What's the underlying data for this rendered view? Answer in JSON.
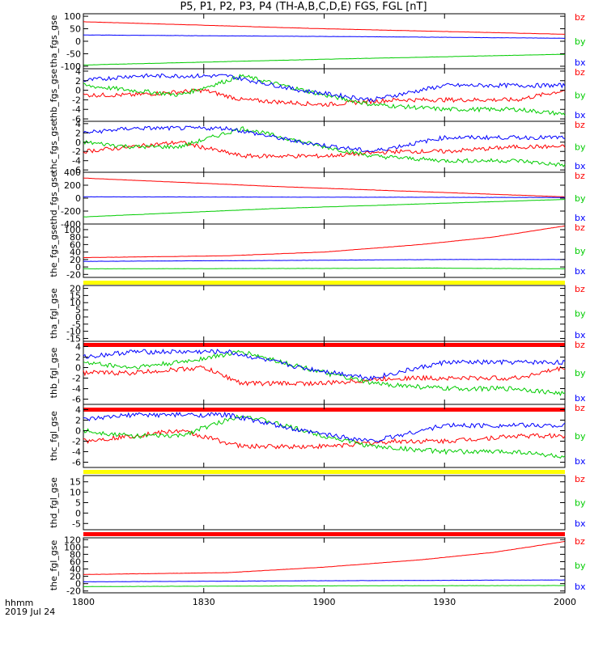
{
  "title": "P5, P1, P2, P3, P4 (TH-A,B,C,D,E) FGS, FGL [nT]",
  "footer": {
    "time_label": "hhmm",
    "date_label": "2019 Jul 24"
  },
  "x_axis": {
    "ticks": [
      1800,
      1830,
      1900,
      1930,
      2000
    ],
    "tick_labels": [
      "1800",
      "1830",
      "1900",
      "1930",
      "2000"
    ]
  },
  "colors": {
    "bx": "#0000ff",
    "by": "#00cc00",
    "bz": "#ff0000",
    "flag_yellow": "#ffff00",
    "flag_red": "#ff0000",
    "axis": "#000000"
  },
  "chart_data": [
    {
      "type": "line",
      "ylabel": "tha_fgs_gse",
      "ylim": [
        -110,
        110
      ],
      "yticks": [
        100,
        50,
        0,
        -50,
        -100
      ],
      "legend": [
        "bz",
        "by",
        "bx"
      ],
      "series": [
        {
          "name": "bz",
          "color": "#ff0000",
          "points": [
            [
              0,
              78
            ],
            [
              0.5,
              50
            ],
            [
              1,
              28
            ]
          ]
        },
        {
          "name": "by",
          "color": "#00cc00",
          "points": [
            [
              0,
              -95
            ],
            [
              0.5,
              -72
            ],
            [
              1,
              -52
            ]
          ]
        },
        {
          "name": "bx",
          "color": "#0000ff",
          "points": [
            [
              0,
              25
            ],
            [
              0.6,
              18
            ],
            [
              1,
              12
            ]
          ]
        }
      ]
    },
    {
      "type": "line",
      "ylabel": "thb_fgs_gse",
      "ylim": [
        -6.5,
        4.5
      ],
      "yticks": [
        4,
        2,
        0,
        -2,
        -4,
        -6
      ],
      "legend": [
        "bz",
        "by",
        "bx"
      ],
      "series": [
        {
          "name": "bz",
          "color": "#ff0000",
          "points": [
            [
              0,
              -1
            ],
            [
              0.1,
              -1
            ],
            [
              0.25,
              0
            ],
            [
              0.33,
              -2
            ],
            [
              0.5,
              -3
            ],
            [
              0.65,
              -2
            ],
            [
              0.75,
              -2
            ],
            [
              0.9,
              -2
            ],
            [
              1,
              0
            ]
          ]
        },
        {
          "name": "by",
          "color": "#00cc00",
          "points": [
            [
              0,
              1
            ],
            [
              0.1,
              0
            ],
            [
              0.2,
              -1
            ],
            [
              0.33,
              3
            ],
            [
              0.5,
              -1
            ],
            [
              0.6,
              -3
            ],
            [
              0.75,
              -4
            ],
            [
              0.9,
              -4
            ],
            [
              1,
              -5
            ]
          ]
        },
        {
          "name": "bx",
          "color": "#0000ff",
          "points": [
            [
              0,
              2
            ],
            [
              0.1,
              3
            ],
            [
              0.3,
              3
            ],
            [
              0.45,
              0
            ],
            [
              0.6,
              -2
            ],
            [
              0.75,
              1
            ],
            [
              0.9,
              1
            ],
            [
              1,
              1
            ]
          ]
        }
      ]
    },
    {
      "type": "line",
      "ylabel": "thc_fgs_gse",
      "ylim": [
        -6.5,
        4.5
      ],
      "yticks": [
        4,
        2,
        0,
        -2,
        -4,
        -6
      ],
      "legend": [
        "bz",
        "by",
        "bx"
      ],
      "series": [
        {
          "name": "bz",
          "color": "#ff0000",
          "points": [
            [
              0,
              -2
            ],
            [
              0.1,
              -1
            ],
            [
              0.2,
              0
            ],
            [
              0.33,
              -3
            ],
            [
              0.5,
              -3
            ],
            [
              0.65,
              -2
            ],
            [
              0.75,
              -2
            ],
            [
              0.9,
              -1
            ],
            [
              1,
              -1
            ]
          ]
        },
        {
          "name": "by",
          "color": "#00cc00",
          "points": [
            [
              0,
              0
            ],
            [
              0.1,
              -1
            ],
            [
              0.2,
              -1
            ],
            [
              0.33,
              3
            ],
            [
              0.5,
              -1
            ],
            [
              0.6,
              -3
            ],
            [
              0.75,
              -4
            ],
            [
              0.9,
              -4
            ],
            [
              1,
              -5
            ]
          ]
        },
        {
          "name": "bx",
          "color": "#0000ff",
          "points": [
            [
              0,
              2
            ],
            [
              0.1,
              3
            ],
            [
              0.3,
              3
            ],
            [
              0.45,
              0
            ],
            [
              0.6,
              -2
            ],
            [
              0.75,
              1
            ],
            [
              0.9,
              1
            ],
            [
              1,
              1
            ]
          ]
        }
      ]
    },
    {
      "type": "line",
      "ylabel": "thd_fgs_gse",
      "ylim": [
        -400,
        400
      ],
      "yticks": [
        400,
        200,
        0,
        -200,
        -400
      ],
      "legend": [
        "bz",
        "by",
        "bx"
      ],
      "series": [
        {
          "name": "bz",
          "color": "#ff0000",
          "points": [
            [
              0,
              310
            ],
            [
              0.4,
              180
            ],
            [
              1,
              20
            ]
          ]
        },
        {
          "name": "by",
          "color": "#00cc00",
          "points": [
            [
              0,
              -290
            ],
            [
              0.4,
              -160
            ],
            [
              1,
              -20
            ]
          ]
        },
        {
          "name": "bx",
          "color": "#0000ff",
          "points": [
            [
              0,
              20
            ],
            [
              0.5,
              15
            ],
            [
              1,
              10
            ]
          ]
        }
      ]
    },
    {
      "type": "line",
      "ylabel": "the_fgs_gse",
      "ylim": [
        -28,
        115
      ],
      "yticks": [
        100,
        80,
        60,
        40,
        20,
        0,
        -20
      ],
      "legend": [
        "bz",
        "by",
        "bx"
      ],
      "series": [
        {
          "name": "bz",
          "color": "#ff0000",
          "points": [
            [
              0,
              25
            ],
            [
              0.3,
              30
            ],
            [
              0.5,
              40
            ],
            [
              0.7,
              60
            ],
            [
              0.85,
              80
            ],
            [
              1,
              110
            ]
          ]
        },
        {
          "name": "by",
          "color": "#00cc00",
          "points": [
            [
              0,
              -5
            ],
            [
              0.5,
              -4
            ],
            [
              0.7,
              -3
            ],
            [
              1,
              -5
            ]
          ]
        },
        {
          "name": "bx",
          "color": "#0000ff",
          "points": [
            [
              0,
              15
            ],
            [
              0.5,
              18
            ],
            [
              0.75,
              20
            ],
            [
              1,
              20
            ]
          ]
        }
      ]
    },
    {
      "type": "line",
      "ylabel": "tha_fgl_gse",
      "ylim": [
        -17,
        22
      ],
      "yticks": [
        20,
        15,
        10,
        5,
        0,
        -5,
        -10,
        -15
      ],
      "legend": [
        "bz",
        "by",
        "bx"
      ],
      "series": []
    },
    {
      "type": "line",
      "ylabel": "thb_fgl_gse",
      "ylim": [
        -7,
        5
      ],
      "yticks": [
        4,
        2,
        0,
        -2,
        -4,
        -6
      ],
      "legend": [
        "bz",
        "by",
        "bx"
      ],
      "series": [
        {
          "name": "bz",
          "color": "#ff0000",
          "points": [
            [
              0,
              -1
            ],
            [
              0.1,
              -1
            ],
            [
              0.25,
              0
            ],
            [
              0.33,
              -3
            ],
            [
              0.5,
              -3
            ],
            [
              0.65,
              -2
            ],
            [
              0.75,
              -2
            ],
            [
              0.9,
              -2
            ],
            [
              1,
              0
            ]
          ]
        },
        {
          "name": "by",
          "color": "#00cc00",
          "points": [
            [
              0,
              1
            ],
            [
              0.1,
              0
            ],
            [
              0.2,
              1
            ],
            [
              0.33,
              3
            ],
            [
              0.5,
              -1
            ],
            [
              0.6,
              -3
            ],
            [
              0.75,
              -4
            ],
            [
              0.9,
              -4
            ],
            [
              1,
              -5
            ]
          ]
        },
        {
          "name": "bx",
          "color": "#0000ff",
          "points": [
            [
              0,
              2
            ],
            [
              0.1,
              3
            ],
            [
              0.3,
              3
            ],
            [
              0.45,
              0
            ],
            [
              0.6,
              -2
            ],
            [
              0.75,
              1
            ],
            [
              0.9,
              1
            ],
            [
              1,
              1
            ]
          ]
        }
      ]
    },
    {
      "type": "line",
      "ylabel": "thc_fgl_gse",
      "ylim": [
        -7,
        5
      ],
      "yticks": [
        4,
        2,
        0,
        -2,
        -4,
        -6
      ],
      "legend": [
        "bz",
        "by",
        "bx"
      ],
      "series": [
        {
          "name": "bz",
          "color": "#ff0000",
          "points": [
            [
              0,
              -2
            ],
            [
              0.1,
              -1
            ],
            [
              0.2,
              0
            ],
            [
              0.33,
              -3
            ],
            [
              0.5,
              -3
            ],
            [
              0.65,
              -2
            ],
            [
              0.75,
              -2
            ],
            [
              0.9,
              -1
            ],
            [
              1,
              -1
            ]
          ]
        },
        {
          "name": "by",
          "color": "#00cc00",
          "points": [
            [
              0,
              0
            ],
            [
              0.1,
              -1
            ],
            [
              0.2,
              -1
            ],
            [
              0.33,
              3
            ],
            [
              0.5,
              -1
            ],
            [
              0.6,
              -3
            ],
            [
              0.75,
              -4
            ],
            [
              0.9,
              -4
            ],
            [
              1,
              -5
            ]
          ]
        },
        {
          "name": "bx",
          "color": "#0000ff",
          "points": [
            [
              0,
              2
            ],
            [
              0.1,
              3
            ],
            [
              0.3,
              3
            ],
            [
              0.45,
              0
            ],
            [
              0.6,
              -2
            ],
            [
              0.75,
              1
            ],
            [
              0.9,
              1
            ],
            [
              1,
              1
            ]
          ]
        }
      ]
    },
    {
      "type": "line",
      "ylabel": "thd_fgl_gse",
      "ylim": [
        -8,
        18
      ],
      "yticks": [
        15,
        10,
        5,
        0,
        -5
      ],
      "legend": [
        "bz",
        "by",
        "bx"
      ],
      "series": []
    },
    {
      "type": "line",
      "ylabel": "the_fgl_gse",
      "ylim": [
        -25,
        125
      ],
      "yticks": [
        120,
        100,
        80,
        60,
        40,
        20,
        0,
        -20
      ],
      "legend": [
        "bz",
        "by",
        "bx"
      ],
      "series": [
        {
          "name": "bz",
          "color": "#ff0000",
          "points": [
            [
              0,
              25
            ],
            [
              0.3,
              30
            ],
            [
              0.5,
              45
            ],
            [
              0.7,
              65
            ],
            [
              0.85,
              85
            ],
            [
              1,
              115
            ]
          ]
        },
        {
          "name": "by",
          "color": "#00cc00",
          "points": [
            [
              0,
              -8
            ],
            [
              0.5,
              -6
            ],
            [
              1,
              -5
            ]
          ]
        },
        {
          "name": "bx",
          "color": "#0000ff",
          "points": [
            [
              0,
              5
            ],
            [
              0.5,
              8
            ],
            [
              1,
              10
            ]
          ]
        }
      ]
    }
  ]
}
